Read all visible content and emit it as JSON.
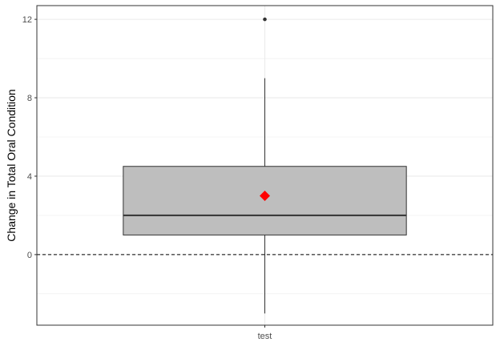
{
  "chart_data": {
    "type": "box",
    "categories": [
      "test"
    ],
    "ylabel": "Change in Total Oral Condition",
    "xlabel": "",
    "ylim": [
      -3.6,
      12.7
    ],
    "yticks": [
      0,
      4,
      8,
      12
    ],
    "grid": true,
    "reference_line": {
      "y": 0,
      "style": "dashed"
    },
    "boxes": [
      {
        "category": "test",
        "whisker_low": -3,
        "q1": 1,
        "median": 2,
        "q3": 4.5,
        "whisker_high": 9,
        "mean": 3,
        "outliers": [
          12
        ]
      }
    ],
    "colors": {
      "box_fill": "#bebebe",
      "mean_marker": "#ff0000",
      "grid": "#ebebeb",
      "outline": "#333333"
    }
  }
}
